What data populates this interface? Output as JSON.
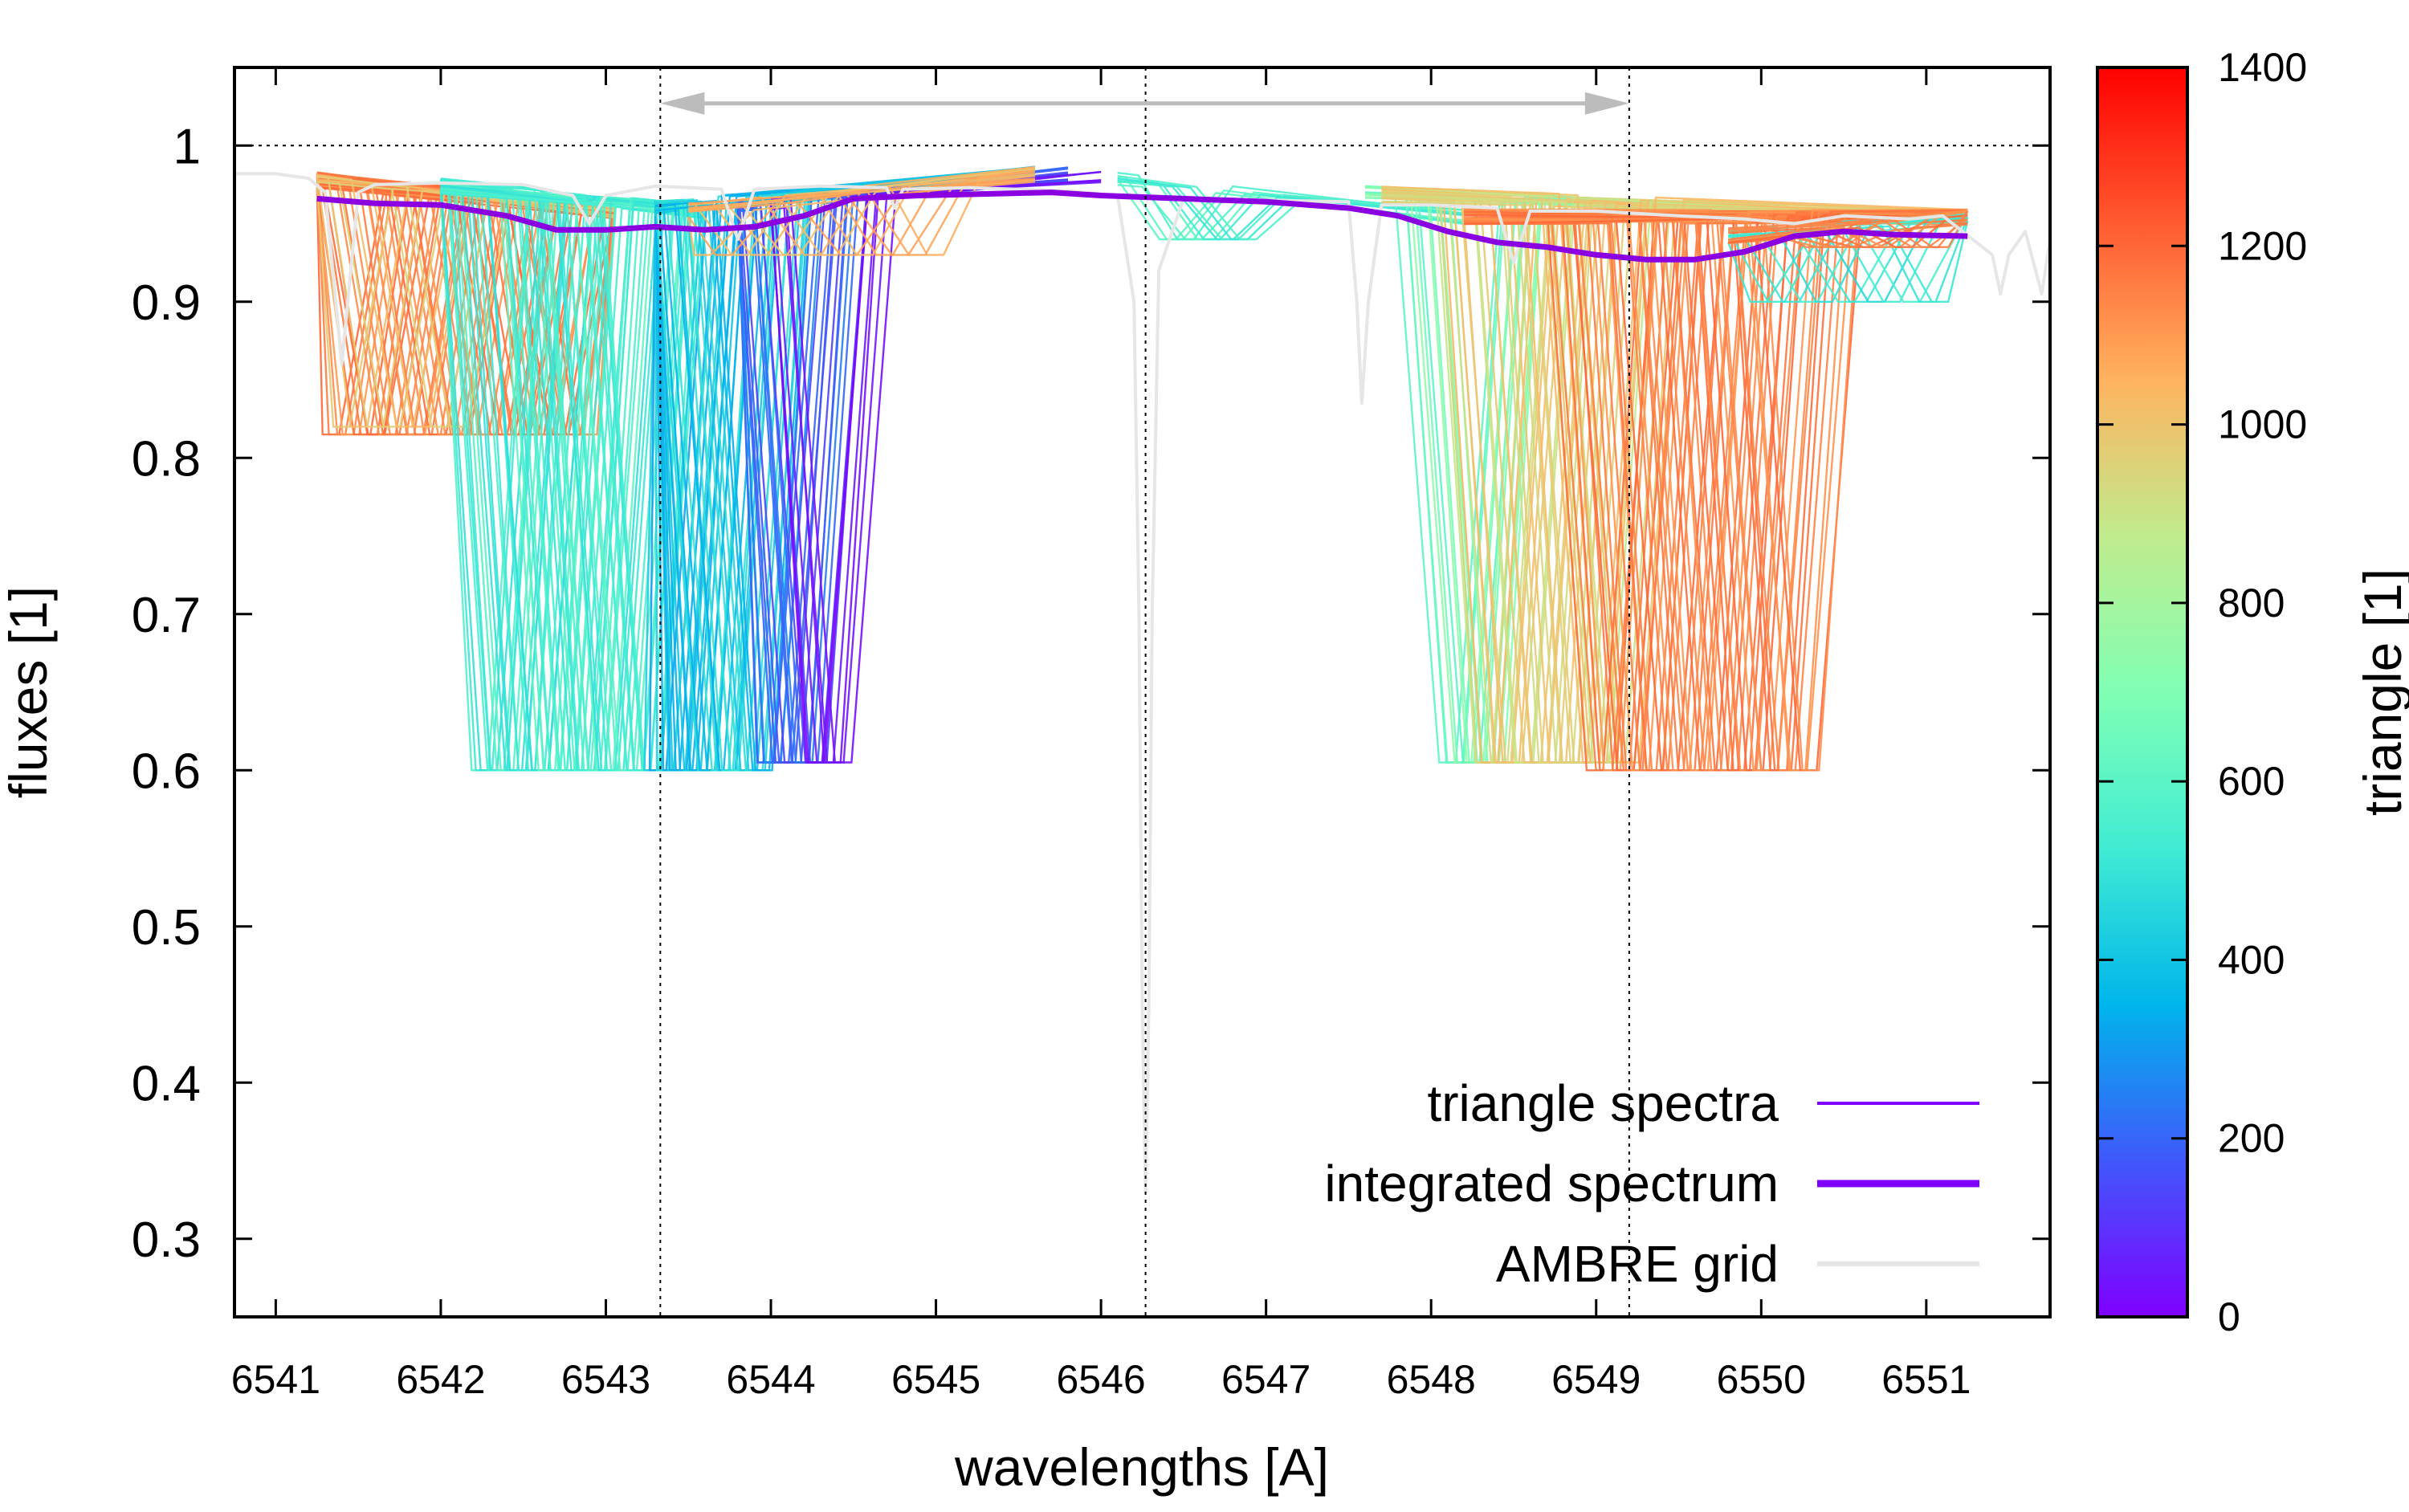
{
  "chart_data": {
    "type": "line",
    "xlabel": "wavelengths [A]",
    "ylabel": "fluxes [1]",
    "xlim": [
      6540.75,
      6551.75
    ],
    "ylim": [
      0.25,
      1.05
    ],
    "x_ticks": [
      6541,
      6542,
      6543,
      6544,
      6545,
      6546,
      6547,
      6548,
      6549,
      6550,
      6551
    ],
    "y_ticks": [
      0.3,
      0.4,
      0.5,
      0.6,
      0.7,
      0.8,
      0.9,
      1
    ],
    "y_tick_labels": [
      "0.3",
      "0.4",
      "0.5",
      "0.6",
      "0.7",
      "0.8",
      "0.9",
      "1"
    ],
    "grid": false,
    "reference_lines": {
      "horizontal_y": 1.0,
      "vertical_x": [
        6543.33,
        6546.27,
        6549.2
      ]
    },
    "arrow": {
      "from_x": 6543.33,
      "to_x": 6549.2,
      "y": 1.027,
      "double_headed": true
    },
    "colorbar": {
      "label": "triangle [1]",
      "range": [
        0,
        1400
      ],
      "ticks": [
        0,
        200,
        400,
        600,
        800,
        1000,
        1200,
        1400
      ],
      "palette": "rainbow"
    },
    "legend": {
      "placement": "bottom-right",
      "entries": [
        {
          "label": "triangle spectra",
          "color": "#8000ff"
        },
        {
          "label": "integrated spectrum",
          "color": "#8000ff"
        },
        {
          "label": "AMBRE grid",
          "color": "#e6e6e6"
        }
      ]
    },
    "series": [
      {
        "name": "integrated spectrum",
        "color": "#8a00e0",
        "x": [
          6541.25,
          6541.6,
          6542.0,
          6542.4,
          6542.7,
          6543.0,
          6543.3,
          6543.6,
          6543.9,
          6544.2,
          6544.5,
          6544.9,
          6545.3,
          6545.7,
          6546.0,
          6546.5,
          6547.0,
          6547.5,
          6547.8,
          6548.1,
          6548.4,
          6548.7,
          6549.0,
          6549.3,
          6549.6,
          6549.9,
          6550.2,
          6550.5,
          6550.8,
          6551.25
        ],
        "y": [
          0.966,
          0.963,
          0.962,
          0.955,
          0.946,
          0.946,
          0.948,
          0.946,
          0.948,
          0.955,
          0.966,
          0.968,
          0.969,
          0.97,
          0.968,
          0.966,
          0.964,
          0.96,
          0.955,
          0.945,
          0.938,
          0.935,
          0.93,
          0.927,
          0.927,
          0.932,
          0.942,
          0.945,
          0.943,
          0.942
        ]
      },
      {
        "name": "AMBRE grid",
        "color": "#e6e6e6",
        "x": [
          6540.75,
          6541.0,
          6541.2,
          6541.3,
          6541.4,
          6541.5,
          6541.6,
          6542.0,
          6542.5,
          6542.8,
          6542.9,
          6543.0,
          6543.3,
          6543.7,
          6543.8,
          6543.9,
          6544.3,
          6544.7,
          6544.75,
          6544.8,
          6545.2,
          6545.8,
          6546.1,
          6546.2,
          6546.23,
          6546.25,
          6546.27,
          6546.29,
          6546.31,
          6546.35,
          6546.5,
          6546.7,
          6547.0,
          6547.5,
          6547.55,
          6547.58,
          6547.62,
          6547.7,
          6548.0,
          6548.4,
          6548.5,
          6548.6,
          6549.0,
          6549.5,
          6549.9,
          6550.2,
          6550.5,
          6550.9,
          6551.1,
          6551.4,
          6551.45,
          6551.5,
          6551.6,
          6551.7,
          6551.75
        ],
        "y": [
          0.982,
          0.982,
          0.979,
          0.97,
          0.86,
          0.97,
          0.975,
          0.976,
          0.975,
          0.968,
          0.95,
          0.968,
          0.974,
          0.972,
          0.94,
          0.972,
          0.974,
          0.973,
          0.96,
          0.972,
          0.973,
          0.971,
          0.968,
          0.9,
          0.7,
          0.45,
          0.33,
          0.45,
          0.7,
          0.92,
          0.966,
          0.966,
          0.965,
          0.964,
          0.9,
          0.835,
          0.9,
          0.962,
          0.962,
          0.96,
          0.925,
          0.958,
          0.958,
          0.955,
          0.953,
          0.95,
          0.955,
          0.953,
          0.955,
          0.93,
          0.905,
          0.93,
          0.945,
          0.905,
          0.94
        ]
      }
    ],
    "triangle_spectra_groups": [
      {
        "x_start": 6541.25,
        "x_end": 6543.05,
        "center_min": 6541.35,
        "center_max": 6542.9,
        "depth": 0.815,
        "value_min": 1100,
        "value_max": 1200,
        "count": 40
      },
      {
        "x_start": 6541.25,
        "x_end": 6543.05,
        "center_min": 6541.4,
        "center_max": 6542.1,
        "depth": 0.82,
        "value_min": 950,
        "value_max": 1050,
        "count": 8
      },
      {
        "x_start": 6542.0,
        "x_end": 6543.6,
        "center_min": 6542.25,
        "center_max": 6543.3,
        "depth": 0.6,
        "value_min": 480,
        "value_max": 620,
        "count": 45
      },
      {
        "x_start": 6543.3,
        "x_end": 6545.6,
        "center_min": 6543.3,
        "center_max": 6543.95,
        "depth": 0.6,
        "value_min": 300,
        "value_max": 500,
        "count": 30
      },
      {
        "x_start": 6543.8,
        "x_end": 6545.8,
        "center_min": 6543.95,
        "center_max": 6544.3,
        "depth": 0.605,
        "value_min": 120,
        "value_max": 280,
        "count": 14
      },
      {
        "x_start": 6544.0,
        "x_end": 6546.0,
        "center_min": 6544.25,
        "center_max": 6544.45,
        "depth": 0.605,
        "value_min": 10,
        "value_max": 70,
        "count": 6
      },
      {
        "x_start": 6543.5,
        "x_end": 6545.6,
        "center_min": 6543.6,
        "center_max": 6545.0,
        "depth": 0.93,
        "value_min": 1000,
        "value_max": 1100,
        "count": 14
      },
      {
        "x_start": 6546.1,
        "x_end": 6548.2,
        "center_min": 6546.4,
        "center_max": 6546.9,
        "depth": 0.94,
        "value_min": 500,
        "value_max": 620,
        "count": 10
      },
      {
        "x_start": 6547.6,
        "x_end": 6551.25,
        "center_min": 6548.1,
        "center_max": 6548.4,
        "depth": 0.605,
        "value_min": 600,
        "value_max": 760,
        "count": 12
      },
      {
        "x_start": 6547.7,
        "x_end": 6551.25,
        "center_min": 6548.3,
        "center_max": 6549.2,
        "depth": 0.605,
        "value_min": 880,
        "value_max": 1050,
        "count": 30
      },
      {
        "x_start": 6548.2,
        "x_end": 6551.25,
        "center_min": 6549.0,
        "center_max": 6550.3,
        "depth": 0.6,
        "value_min": 1100,
        "value_max": 1200,
        "count": 40
      },
      {
        "x_start": 6549.8,
        "x_end": 6551.25,
        "center_min": 6550.0,
        "center_max": 6551.1,
        "depth": 0.9,
        "value_min": 450,
        "value_max": 600,
        "count": 12
      },
      {
        "x_start": 6549.8,
        "x_end": 6551.25,
        "center_min": 6550.3,
        "center_max": 6551.1,
        "depth": 0.935,
        "value_min": 1100,
        "value_max": 1200,
        "count": 12
      }
    ]
  }
}
